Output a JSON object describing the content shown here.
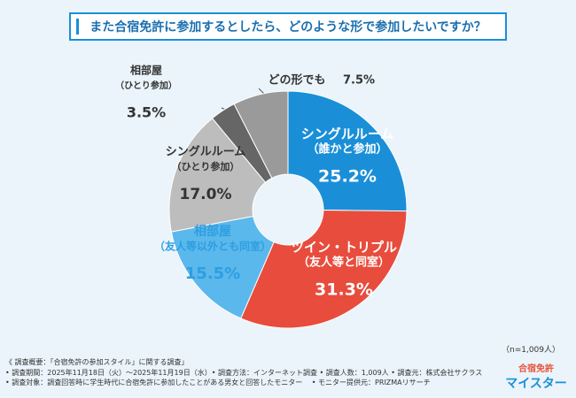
{
  "chart_data": {
    "type": "donut",
    "title": "また合宿免許に参加するとしたら、どのような形で参加したいですか？",
    "categories": [
      [
        "シングルルーム",
        "（誰かと参加）"
      ],
      [
        "ツイン・トリプル",
        "（友人等と同室）"
      ],
      [
        "相部屋",
        "（友人等以外とも同室）"
      ],
      [
        "シングルルーム",
        "（ひとり参加）"
      ],
      [
        "相部屋",
        "（ひとり参加）"
      ],
      [
        "どの形でも"
      ]
    ],
    "values": [
      25.2,
      31.3,
      15.5,
      17.0,
      3.5,
      7.5
    ],
    "value_labels": [
      "25.2%",
      "31.3%",
      "15.5%",
      "17.0%",
      "3.5%",
      "7.5%"
    ],
    "colors": [
      "#1a8fd8",
      "#e84c3d",
      "#5ab8ec",
      "#bdbdbd",
      "#666666",
      "#9a9a9a"
    ],
    "sample_size": "（n=1,009人）",
    "notes": [
      "《 調査概要：「合宿免許の参加スタイル」に関する調査」",
      "• 調査期間：2025年11月18日（火）～2025年11月19日（水）• 調査方法：インターネット調査 • 調査人数：1,009人 • 調査元：株式会社サクラス",
      "• 調査対象：調査回答時に学生時代に合宿免許に参加したことがある男女と回答したモニター　 • モニター提供元：PRIZMAリサーチ"
    ],
    "logo": [
      "合宿免許",
      "マイスター"
    ]
  }
}
